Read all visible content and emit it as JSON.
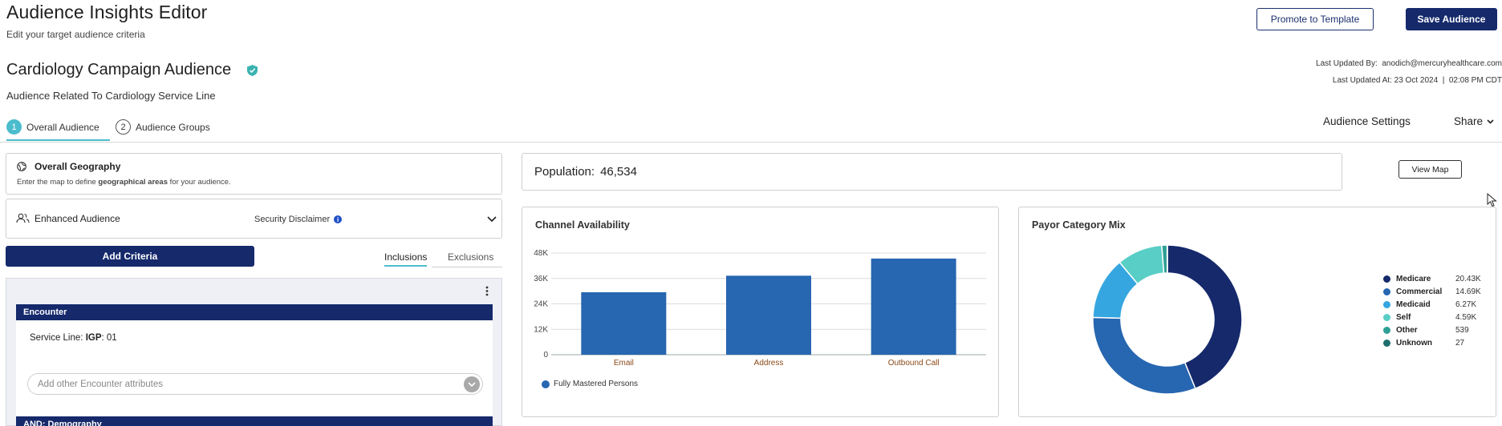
{
  "header": {
    "title": "Audience Insights Editor",
    "subtitle": "Edit your target audience criteria",
    "promote_label": "Promote to Template",
    "save_label": "Save Audience"
  },
  "audience": {
    "name": "Cardiology Campaign Audience",
    "description": "Audience Related To Cardiology Service Line",
    "last_updated_by_label": "Last Updated By:",
    "last_updated_by": "anodich@mercuryhealthcare.com",
    "last_updated_at_label": "Last Updated At:",
    "last_updated_date": "23 Oct 2024",
    "last_updated_time": "02:08 PM CDT"
  },
  "tabs": [
    {
      "num": "1",
      "label": "Overall Audience",
      "active": true
    },
    {
      "num": "2",
      "label": "Audience Groups",
      "active": false
    }
  ],
  "right_actions": {
    "settings_label": "Audience Settings",
    "share_label": "Share"
  },
  "geography": {
    "title": "Overall Geography",
    "sub_pre": "Enter the map to define ",
    "sub_bold": "geographical areas",
    "sub_post": " for your audience."
  },
  "enhanced": {
    "title": "Enhanced Audience",
    "disclaimer": "Security Disclaimer",
    "info_glyph": "i"
  },
  "criteria": {
    "add_label": "Add Criteria",
    "inclusions_label": "Inclusions",
    "exclusions_label": "Exclusions"
  },
  "encounter": {
    "header": "Encounter",
    "service_line_label": "Service Line: ",
    "service_line_key": "IGP",
    "service_line_value": ": 01",
    "attr_placeholder": "Add other Encounter attributes"
  },
  "demography": {
    "header": "AND: Demography"
  },
  "population": {
    "label": "Population:",
    "value": "46,534",
    "view_map_label": "View Map"
  },
  "colors": {
    "navy": "#15296b",
    "teal": "#4bbccc",
    "bar": "#2766b0"
  },
  "chart_data": [
    {
      "type": "bar",
      "title": "Channel Availability",
      "categories": [
        "Email",
        "Address",
        "Outbound Call"
      ],
      "series": [
        {
          "name": "Fully Mastered Persons",
          "values": [
            29500,
            37300,
            45400
          ]
        }
      ],
      "yticks": [
        "0",
        "12K",
        "24K",
        "36K",
        "48K"
      ],
      "ylim": [
        0,
        48000
      ],
      "grid": true,
      "legend": "bottom-left"
    },
    {
      "type": "pie",
      "title": "Payor Category Mix",
      "labels": [
        "Medicare",
        "Commercial",
        "Medicaid",
        "Self",
        "Other",
        "Unknown"
      ],
      "display_values": [
        "20.43K",
        "14.69K",
        "6.27K",
        "4.59K",
        "539",
        "27"
      ],
      "values": [
        20430,
        14690,
        6270,
        4590,
        539,
        27
      ],
      "colors": [
        "#15296b",
        "#2766b0",
        "#35a6e0",
        "#58cec6",
        "#2fa095",
        "#1f6e6e"
      ],
      "legend": "right"
    }
  ]
}
